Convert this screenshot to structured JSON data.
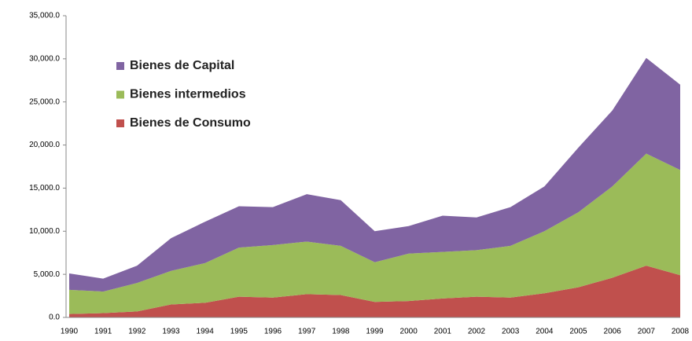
{
  "chart_data": {
    "type": "stacked-area",
    "categories": [
      "1990",
      "1991",
      "1992",
      "1993",
      "1994",
      "1995",
      "1996",
      "1997",
      "1998",
      "1999",
      "2000",
      "2001",
      "2002",
      "2003",
      "2004",
      "2005",
      "2006",
      "2007",
      "2008"
    ],
    "series": [
      {
        "name": "Bienes de Consumo",
        "color": "#c0504d",
        "values": [
          400,
          500,
          700,
          1500,
          1700,
          2400,
          2300,
          2700,
          2600,
          1800,
          1900,
          2200,
          2400,
          2300,
          2800,
          3500,
          4600,
          6000,
          4900
        ]
      },
      {
        "name": "Bienes intermedios",
        "color": "#9bbb59",
        "values": [
          2800,
          2500,
          3300,
          3900,
          4600,
          5700,
          6100,
          6100,
          5700,
          4600,
          5500,
          5400,
          5400,
          6000,
          7200,
          8700,
          10600,
          13000,
          12200
        ]
      },
      {
        "name": "Bienes de Capital",
        "color": "#8064a2",
        "values": [
          1900,
          1500,
          2000,
          3800,
          4800,
          4800,
          4400,
          5500,
          5300,
          3600,
          3200,
          4200,
          3800,
          4500,
          5200,
          7500,
          8800,
          11100,
          9900
        ]
      }
    ],
    "ylim": [
      0,
      35000
    ],
    "yticks": [
      {
        "value": 0,
        "label": "0.0"
      },
      {
        "value": 5000,
        "label": "5,000.0"
      },
      {
        "value": 10000,
        "label": "10,000.0"
      },
      {
        "value": 15000,
        "label": "15,000.0"
      },
      {
        "value": 20000,
        "label": "20,000.0"
      },
      {
        "value": 25000,
        "label": "25,000.0"
      },
      {
        "value": 30000,
        "label": "30,000.0"
      },
      {
        "value": 35000,
        "label": "35,000.0"
      }
    ],
    "legend": "upper-left"
  }
}
